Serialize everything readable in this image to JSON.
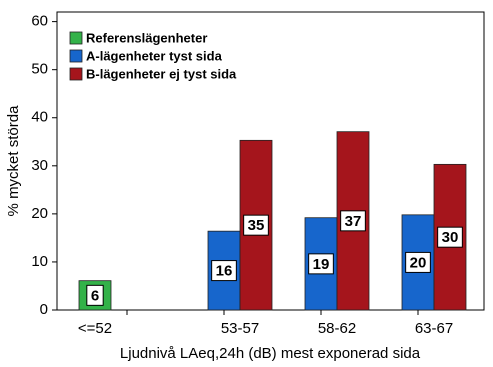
{
  "chart_data": {
    "type": "bar",
    "categories": [
      "<=52",
      "53-57",
      "58-62",
      "63-67"
    ],
    "series": [
      {
        "name": "Referenslägenheter",
        "color": "#33b249",
        "values": [
          6.1,
          null,
          null,
          null
        ],
        "value_labels": [
          "6",
          null,
          null,
          null
        ]
      },
      {
        "name": "A-lägenheter tyst sida",
        "color": "#1766cc",
        "values": [
          null,
          16.4,
          19.2,
          19.8
        ],
        "value_labels": [
          null,
          "16",
          "19",
          "20"
        ]
      },
      {
        "name": "B-lägenheter ej tyst sida",
        "color": "#a5151c",
        "values": [
          null,
          35.3,
          37.1,
          30.3
        ],
        "value_labels": [
          null,
          "35",
          "37",
          "30"
        ]
      }
    ],
    "xlabel": "Ljudnivå LAeq,24h (dB) mest exponerad sida",
    "ylabel": "% mycket störda",
    "ylim": [
      0,
      62
    ],
    "yticks": [
      0,
      10,
      20,
      30,
      40,
      50,
      60
    ],
    "legend": "upper-left"
  }
}
